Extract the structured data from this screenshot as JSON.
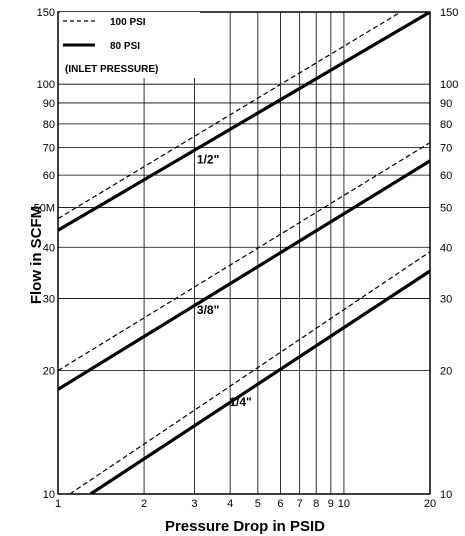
{
  "chart_data": {
    "type": "line",
    "xscale": "log",
    "yscale": "log",
    "xlim": [
      1,
      20
    ],
    "ylim": [
      10,
      150
    ],
    "xlabel": "Pressure Drop in PSID",
    "ylabel": "Flow in SCFM",
    "xticks": [
      1,
      2,
      3,
      4,
      5,
      6,
      7,
      8,
      9,
      10,
      20
    ],
    "yticks": [
      10,
      20,
      30,
      40,
      50,
      60,
      70,
      80,
      90,
      100,
      150
    ],
    "ytick_labels": [
      "10",
      "20",
      "30",
      "40",
      "50M",
      "60",
      "70",
      "80",
      "90",
      "100",
      "150"
    ],
    "ytick_labels_right": [
      "10",
      "20",
      "30",
      "40",
      "50",
      "60",
      "70",
      "80",
      "90",
      "100",
      "150"
    ],
    "grid": true,
    "legend": {
      "placement": "top-left",
      "entries": [
        {
          "style": "dashed",
          "label": "100 PSI"
        },
        {
          "style": "solid",
          "label": "80 PSI"
        }
      ],
      "note": "(INLET PRESSURE)"
    },
    "series": [
      {
        "group": "1/2\"",
        "pressure": "100 PSI",
        "style": "dashed",
        "points": [
          [
            1,
            47
          ],
          [
            15.8,
            150
          ]
        ]
      },
      {
        "group": "1/2\"",
        "pressure": "80 PSI",
        "style": "solid",
        "points": [
          [
            1,
            44
          ],
          [
            20,
            150
          ]
        ]
      },
      {
        "group": "3/8\"",
        "pressure": "100 PSI",
        "style": "dashed",
        "points": [
          [
            1,
            20
          ],
          [
            20,
            72
          ]
        ]
      },
      {
        "group": "3/8\"",
        "pressure": "80 PSI",
        "style": "solid",
        "points": [
          [
            1,
            18
          ],
          [
            20,
            65
          ]
        ]
      },
      {
        "group": "1/4\"",
        "pressure": "100 PSI",
        "style": "dashed",
        "points": [
          [
            1.1,
            10
          ],
          [
            20,
            39
          ]
        ]
      },
      {
        "group": "1/4\"",
        "pressure": "80 PSI",
        "style": "solid",
        "points": [
          [
            1.3,
            10
          ],
          [
            20,
            35
          ]
        ]
      }
    ],
    "annotations": [
      {
        "text": "1/2\"",
        "x": 3.35,
        "y": 64
      },
      {
        "text": "3/8\"",
        "x": 3.35,
        "y": 27.5
      },
      {
        "text": "1/4\"",
        "x": 4.35,
        "y": 16.4
      }
    ]
  }
}
